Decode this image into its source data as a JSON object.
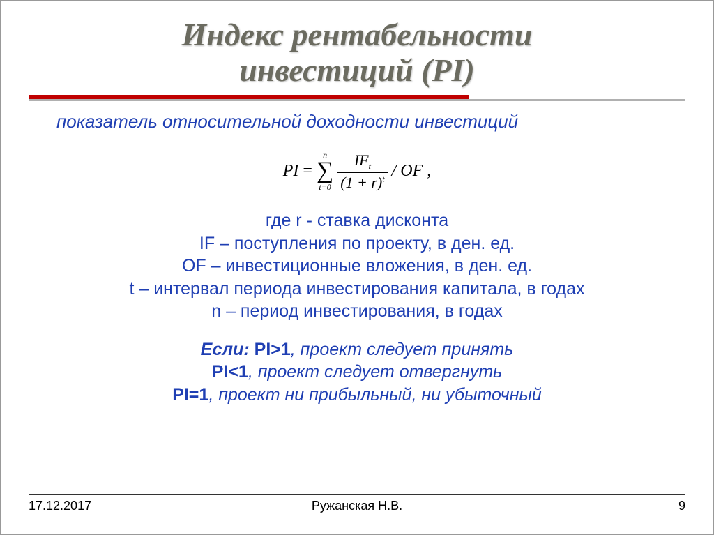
{
  "colors": {
    "title_color": "#6b6b60",
    "accent_color": "#c00000",
    "rule_gray": "#b0b0b0",
    "text_blue": "#1f3fb3",
    "background": "#ffffff"
  },
  "title": {
    "line1": "Индекс рентабельности",
    "line2": "инвестиций (PI)",
    "fontsize": 46,
    "font_family": "Century Schoolbook",
    "italic": true,
    "bold": true
  },
  "subtitle": {
    "text": "показатель относительной доходности инвестиций",
    "fontsize": 26,
    "italic": true
  },
  "formula": {
    "lhs": "PI",
    "eq": "=",
    "sum_upper": "n",
    "sum_lower": "t=0",
    "frac_num_base": "IF",
    "frac_num_sub": "t",
    "frac_den_base": "(1 + r)",
    "frac_den_sup": "t",
    "divide": "/ OF  ,",
    "fontsize": 24,
    "font_family": "Times New Roman"
  },
  "definitions": {
    "fontsize": 25,
    "lines": {
      "l0": "где r - ставка дисконта",
      "l1": "IF – поступления по проекту, в ден. ед.",
      "l2": "OF – инвестиционные вложения, в ден. ед.",
      "l3": "t – интервал периода инвестирования капитала, в годах",
      "l4": "n – период инвестирования, в годах"
    }
  },
  "decision_rules": {
    "fontsize": 25,
    "lead": "Если:  ",
    "r0_cond": "PI>1",
    "r0_text": ", проект следует принять",
    "r1_cond": "PI<1",
    "r1_text": ", проект следует отвергнуть",
    "r2_cond": "PI=1",
    "r2_text": ", проект ни прибыльный, ни убыточный"
  },
  "footer": {
    "date": "17.12.2017",
    "author": "Ружанская Н.В.",
    "page": "9",
    "fontsize": 18
  }
}
